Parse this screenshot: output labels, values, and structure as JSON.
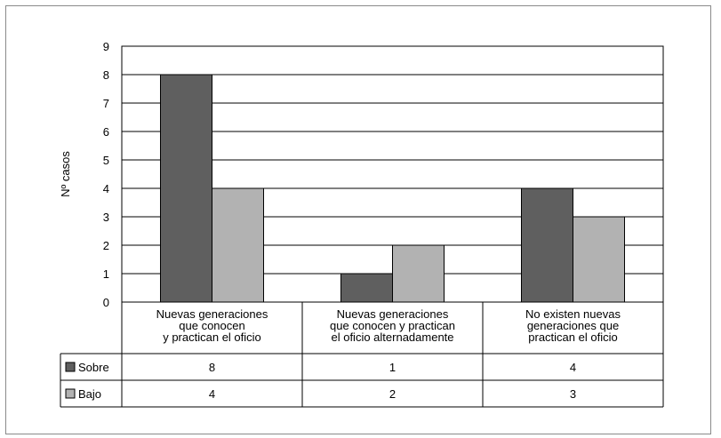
{
  "chart_data": {
    "type": "bar",
    "ylabel": "Nº casos",
    "ylim": [
      0,
      9
    ],
    "yticks": [
      "0",
      "1",
      "2",
      "3",
      "4",
      "5",
      "6",
      "7",
      "8",
      "9"
    ],
    "grid": true,
    "categories": [
      [
        "Nuevas generaciones",
        "que conocen",
        "y practican el oficio"
      ],
      [
        "Nuevas generaciones",
        "que conocen y practican",
        "el oficio alternadamente"
      ],
      [
        "No existen nuevas",
        "generaciones que",
        "practican el oficio"
      ]
    ],
    "series": [
      {
        "name": "Sobre",
        "color": "#5f5f5f",
        "values": [
          8,
          1,
          4
        ],
        "labels": [
          "8",
          "1",
          "4"
        ]
      },
      {
        "name": "Bajo",
        "color": "#b2b2b2",
        "values": [
          4,
          2,
          3
        ],
        "labels": [
          "4",
          "2",
          "3"
        ]
      }
    ],
    "legend": "data-table"
  }
}
